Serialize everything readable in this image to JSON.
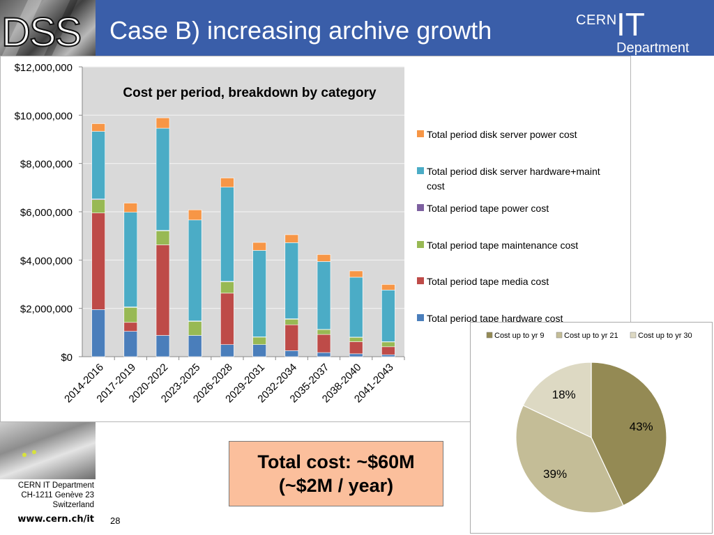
{
  "header": {
    "badge": "DSS",
    "title": "Case B) increasing archive growth",
    "logo_cern": "CERN",
    "logo_it": "IT",
    "logo_department": "Department"
  },
  "footer": {
    "address_lines": [
      "CERN IT Department",
      "CH-1211 Genève 23",
      "Switzerland"
    ],
    "website": "www.cern.ch/it",
    "page_number": "28"
  },
  "callout": {
    "line1": "Total cost: ~$60M",
    "line2": "(~$2M / year)"
  },
  "chart_data": [
    {
      "type": "bar",
      "stacked": true,
      "title": "Cost per period, breakdown by category",
      "xlabel": "",
      "ylabel": "",
      "ylim": [
        0,
        12000000
      ],
      "yticks": [
        "$0",
        "$2,000,000",
        "$4,000,000",
        "$6,000,000",
        "$8,000,000",
        "$10,000,000",
        "$12,000,000"
      ],
      "grid": true,
      "legend_position": "right",
      "categories": [
        "2014-2016",
        "2017-2019",
        "2020-2022",
        "2023-2025",
        "2026-2028",
        "2029-2031",
        "2032-2034",
        "2035-2037",
        "2038-2040",
        "2041-2043"
      ],
      "series": [
        {
          "name": "Total period tape hardware cost",
          "color": "#4a7ebb",
          "values": [
            1950000,
            1050000,
            880000,
            880000,
            500000,
            500000,
            250000,
            170000,
            120000,
            80000
          ]
        },
        {
          "name": "Total period tape media cost",
          "color": "#be4b48",
          "values": [
            4000000,
            370000,
            3750000,
            0,
            2130000,
            0,
            1070000,
            750000,
            500000,
            330000
          ]
        },
        {
          "name": "Total period tape maintenance cost",
          "color": "#98b954",
          "values": [
            550000,
            620000,
            580000,
            580000,
            470000,
            310000,
            230000,
            200000,
            180000,
            200000
          ]
        },
        {
          "name": "Total period tape power cost",
          "color": "#7d60a0",
          "values": [
            30000,
            20000,
            20000,
            20000,
            20000,
            10000,
            20000,
            10000,
            10000,
            10000
          ]
        },
        {
          "name": "Total period disk server hardware+maint cost",
          "color": "#4bacc6",
          "values": [
            2800000,
            3920000,
            4230000,
            4180000,
            3900000,
            3580000,
            3150000,
            2810000,
            2480000,
            2140000
          ]
        },
        {
          "name": "Total period disk server power cost",
          "color": "#f79646",
          "values": [
            320000,
            380000,
            430000,
            420000,
            380000,
            330000,
            330000,
            290000,
            260000,
            230000
          ]
        }
      ]
    },
    {
      "type": "pie",
      "title": "",
      "legend_position": "top",
      "slices": [
        {
          "label": "Cost up to yr 9",
          "value": 43,
          "display": "43%",
          "color": "#948a54"
        },
        {
          "label": "Cost up to yr 21",
          "value": 39,
          "display": "39%",
          "color": "#c4bd97"
        },
        {
          "label": "Cost up to yr 30",
          "value": 18,
          "display": "18%",
          "color": "#ddd9c3"
        }
      ]
    }
  ]
}
